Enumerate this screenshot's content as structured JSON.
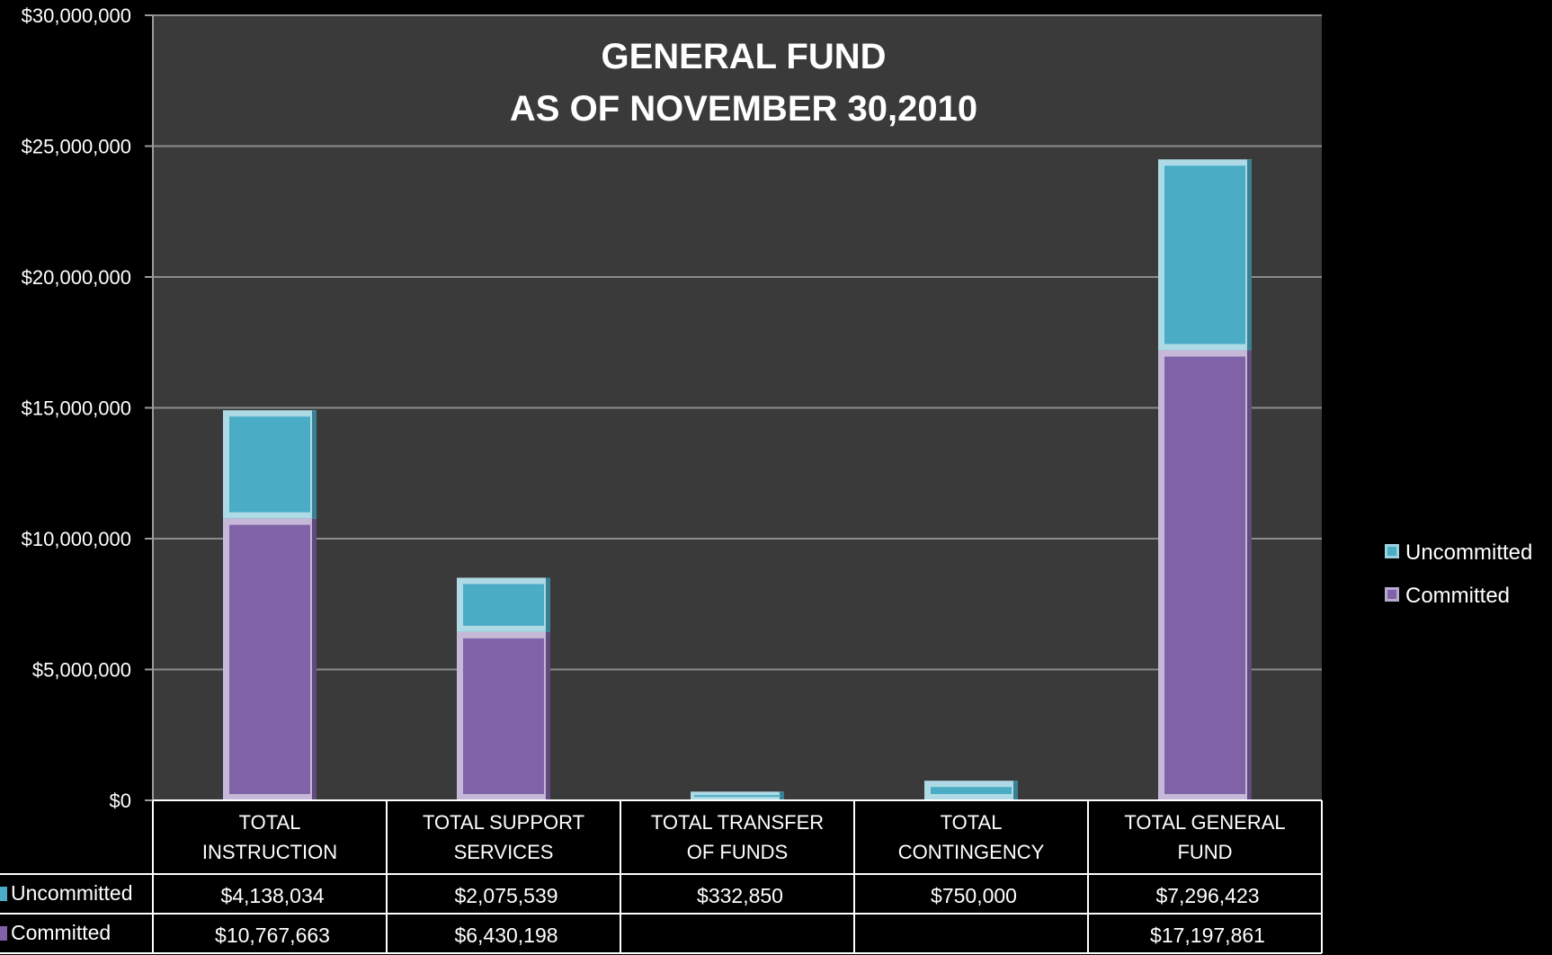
{
  "chart_data": {
    "type": "bar",
    "stacked": true,
    "title": "GENERAL FUND",
    "subtitle": "AS OF NOVEMBER 30,2010",
    "categories": [
      [
        "TOTAL",
        "INSTRUCTION"
      ],
      [
        "TOTAL SUPPORT",
        "SERVICES"
      ],
      [
        "TOTAL TRANSFER",
        "OF FUNDS"
      ],
      [
        "TOTAL",
        "CONTINGENCY"
      ],
      [
        "TOTAL GENERAL",
        "FUND"
      ]
    ],
    "series": [
      {
        "name": "Committed",
        "color": "#8062A8",
        "values": [
          10767663,
          6430198,
          0,
          0,
          17197861
        ],
        "labels": [
          "$10,767,663",
          "$6,430,198",
          "",
          "",
          "$17,197,861"
        ]
      },
      {
        "name": "Uncommitted",
        "color": "#4BACC6",
        "values": [
          4138034,
          2075539,
          332850,
          750000,
          7296423
        ],
        "labels": [
          "$4,138,034",
          "$2,075,539",
          "$332,850",
          "$750,000",
          "$7,296,423"
        ]
      }
    ],
    "ylim": [
      0,
      30000000
    ],
    "yticks": [
      0,
      5000000,
      10000000,
      15000000,
      20000000,
      25000000,
      30000000
    ],
    "ytick_labels": [
      "$0",
      "$5,000,000",
      "$10,000,000",
      "$15,000,000",
      "$20,000,000",
      "$25,000,000",
      "$30,000,000"
    ],
    "grid": true,
    "legend_position": "right",
    "legend_order": [
      "Uncommitted",
      "Committed"
    ],
    "data_table": true,
    "table_row_order": [
      "Uncommitted",
      "Committed"
    ]
  }
}
